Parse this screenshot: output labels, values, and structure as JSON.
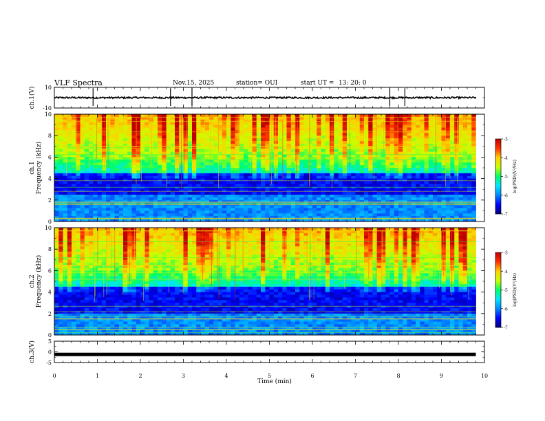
{
  "header": {
    "title": "VLF Spectra",
    "date": "Nov.15, 2025",
    "station": "station= OUI",
    "start_label": "start  UT  =",
    "start_time": "13: 20: 0"
  },
  "colorbar": {
    "label": "log(PSD)(V²/Hz)",
    "ticks": [
      "-3",
      "-4",
      "-5",
      "-6",
      "-7"
    ],
    "min": -7,
    "max": -3,
    "colors": [
      "#00007a",
      "#0000ff",
      "#0088ff",
      "#00e5ff",
      "#00ff66",
      "#c8ff00",
      "#ffd000",
      "#ff3000",
      "#c00000"
    ]
  },
  "chart_data": [
    {
      "type": "line",
      "panel": "ch1-waveform",
      "ylabel": "ch.1(V)",
      "ylim": [
        -10,
        10
      ],
      "ytick_labels": [
        "10",
        "-10"
      ],
      "baseline": 0,
      "spikes_min": [
        0.9,
        2.7,
        3.2,
        7.8,
        8.15
      ],
      "x_range": [
        0,
        9.8
      ]
    },
    {
      "type": "heatmap",
      "panel": "ch1-spectrogram",
      "ylabel": "ch.1 Frequency (kHz)",
      "ylim": [
        0,
        10
      ],
      "ytick_labels": [
        "10",
        "8",
        "6",
        "4",
        "2",
        "0"
      ],
      "z_label": "log(PSD)(V²/Hz)",
      "zlim": [
        -7,
        -3
      ],
      "x_range": [
        0,
        9.8
      ],
      "bright_bands_khz": [
        0.3,
        1.6,
        1.8,
        7.0
      ],
      "dark_band_khz": [
        2.5,
        4.5
      ]
    },
    {
      "type": "heatmap",
      "panel": "ch2-spectrogram",
      "ylabel": "ch.2 Frequency (kHz)",
      "ylim": [
        0,
        10
      ],
      "ytick_labels": [
        "10",
        "8",
        "6",
        "4",
        "2",
        "0"
      ],
      "z_label": "log(PSD)(V²/Hz)",
      "zlim": [
        -7,
        -3
      ],
      "x_range": [
        0,
        9.8
      ],
      "bright_bands_khz": [
        0.5,
        1.5,
        6.5,
        9.7
      ],
      "dark_band_khz": [
        2.0,
        4.5
      ]
    },
    {
      "type": "line",
      "panel": "ch3-waveform",
      "ylabel": "ch.3(V)",
      "ylim": [
        -5,
        5
      ],
      "ytick_labels": [
        "5",
        "0",
        "-5"
      ],
      "level": -1.2,
      "x_range": [
        0,
        9.8
      ]
    }
  ],
  "xaxis": {
    "label": "Time  (min)",
    "range": [
      0,
      10
    ],
    "tick_labels": [
      "0",
      "1",
      "2",
      "3",
      "4",
      "5",
      "6",
      "7",
      "8",
      "9",
      "10"
    ]
  }
}
